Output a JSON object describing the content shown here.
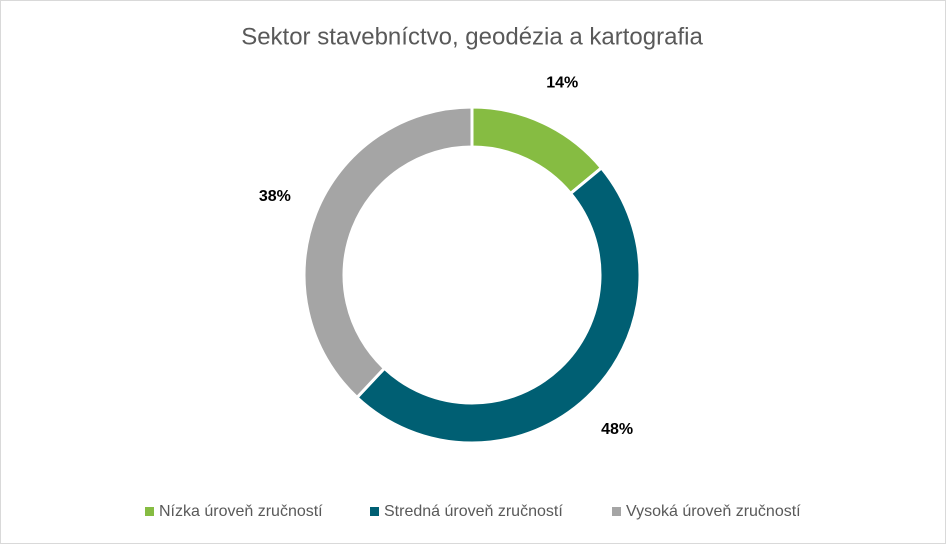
{
  "chart_data": {
    "type": "donut",
    "title": "Sektor stavebníctvo, geodézia a kartografia",
    "categories": [
      "Nízka úroveň zručností",
      "Stredná úroveň zručností",
      "Vysoká úroveň zručností"
    ],
    "values": [
      14,
      48,
      38
    ],
    "value_labels": [
      "14%",
      "48%",
      "38%"
    ],
    "colors": [
      "#86bc42",
      "#005f73",
      "#a5a5a5"
    ],
    "legend": "bottom"
  }
}
